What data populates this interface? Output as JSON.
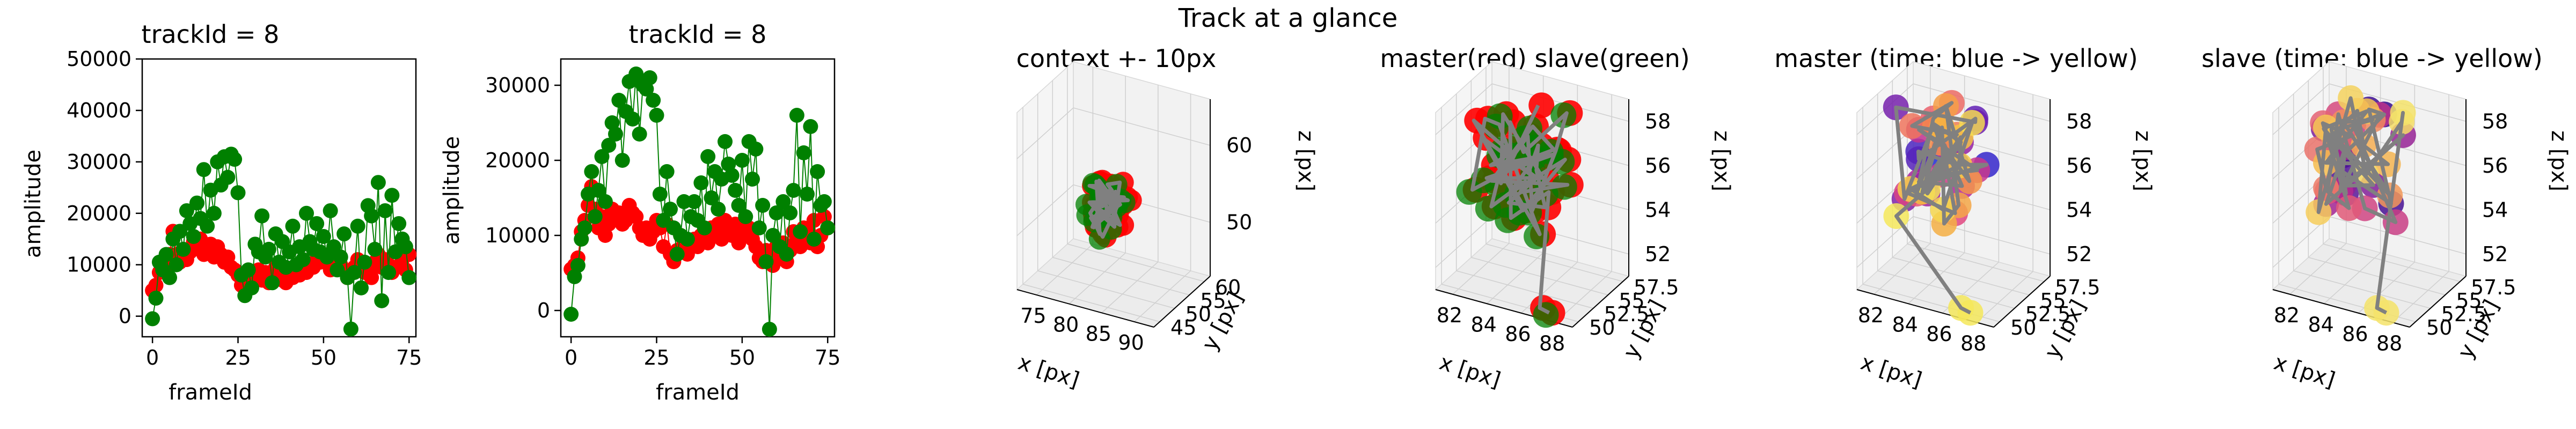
{
  "figure": {
    "suptitle": "Track at a glance"
  },
  "colors": {
    "master": "#ff0000",
    "slave": "#008000",
    "track_line": "#808080",
    "time_cmap_master": [
      "#1f2bd6",
      "#6a1fb0",
      "#b0249b",
      "#e44a7e",
      "#f48a4c",
      "#f6c040",
      "#f5e85a"
    ],
    "time_cmap_slave": [
      "#2a0a8a",
      "#6c1a9e",
      "#b3288f",
      "#e0557a",
      "#f28d5b",
      "#f6bd4f",
      "#f5e36a"
    ]
  },
  "chart_data": [
    {
      "type": "scatter",
      "title": "trackId = 8",
      "xlabel": "frameId",
      "ylabel": "amplitude",
      "xlim": [
        -3,
        77
      ],
      "ylim": [
        -4000,
        50000
      ],
      "xticks": [
        0,
        25,
        50,
        75
      ],
      "yticks": [
        0,
        10000,
        20000,
        30000,
        40000,
        50000
      ],
      "series": [
        {
          "color": "#ff0000",
          "x": [
            0,
            1,
            2,
            3,
            4,
            5,
            6,
            7,
            8,
            9,
            10,
            11,
            12,
            13,
            14,
            15,
            16,
            17,
            18,
            19,
            20,
            21,
            22,
            23,
            24,
            25,
            26,
            27,
            28,
            29,
            30,
            31,
            32,
            33,
            34,
            35,
            36,
            37,
            38,
            39,
            40,
            41,
            42,
            43,
            44,
            45,
            46,
            47,
            48,
            49,
            50,
            51,
            52,
            53,
            54,
            55,
            56,
            57,
            58,
            59,
            60,
            61,
            62,
            63,
            64,
            65,
            66,
            67,
            68,
            69,
            70,
            71,
            72,
            73,
            74,
            75
          ],
          "y": [
            5000,
            6000,
            8500,
            10000,
            9500,
            12000,
            16500,
            12000,
            10500,
            13000,
            11000,
            12500,
            14500,
            13500,
            15000,
            12000,
            13000,
            14000,
            11500,
            13500,
            12000,
            10500,
            11500,
            9500,
            9000,
            8000,
            6000,
            5500,
            7500,
            6500,
            8000,
            9000,
            7000,
            8500,
            6500,
            7500,
            9500,
            8000,
            7000,
            6500,
            8500,
            7500,
            9000,
            8000,
            9500,
            8500,
            10000,
            9500,
            11000,
            10500,
            12000,
            11500,
            9000,
            10500,
            11000,
            10000,
            9000,
            7500,
            8500,
            9500,
            11000,
            10000,
            8500,
            9000,
            7500,
            10500,
            12000,
            9500,
            11000,
            10000,
            8500,
            9500,
            12500,
            11000,
            9000,
            12000
          ]
        },
        {
          "color": "#008000",
          "x": [
            0,
            1,
            2,
            3,
            4,
            5,
            6,
            7,
            8,
            9,
            10,
            11,
            12,
            13,
            14,
            15,
            16,
            17,
            18,
            19,
            20,
            21,
            22,
            23,
            24,
            25,
            26,
            27,
            28,
            29,
            30,
            31,
            32,
            33,
            34,
            35,
            36,
            37,
            38,
            39,
            40,
            41,
            42,
            43,
            44,
            45,
            46,
            47,
            48,
            49,
            50,
            51,
            52,
            53,
            54,
            55,
            56,
            57,
            58,
            59,
            60,
            61,
            62,
            63,
            64,
            65,
            66,
            67,
            68,
            69,
            70,
            71,
            72,
            73,
            74,
            75
          ],
          "y": [
            -500,
            3500,
            10500,
            9000,
            12000,
            7500,
            15000,
            10000,
            16500,
            13000,
            20500,
            18000,
            15500,
            22000,
            19000,
            28500,
            17500,
            24500,
            20000,
            30000,
            25500,
            31000,
            27000,
            31500,
            30500,
            24000,
            8000,
            4000,
            9000,
            5500,
            14000,
            12500,
            19500,
            11500,
            13000,
            6500,
            16000,
            10500,
            14500,
            9500,
            12500,
            17500,
            10000,
            13500,
            11000,
            20000,
            14500,
            13000,
            18000,
            12500,
            15500,
            11500,
            20500,
            13500,
            9000,
            11500,
            16000,
            7500,
            -2500,
            8500,
            17500,
            5500,
            10500,
            21500,
            19500,
            13000,
            26000,
            3000,
            20500,
            8500,
            23500,
            12500,
            18000,
            15000,
            13500,
            7500
          ]
        }
      ]
    },
    {
      "type": "scatter",
      "title": "trackId = 8",
      "xlabel": "frameId",
      "ylabel": "amplitude",
      "xlim": [
        -3,
        77
      ],
      "ylim": [
        -3500,
        33500
      ],
      "xticks": [
        0,
        25,
        50,
        75
      ],
      "yticks": [
        0,
        10000,
        20000,
        30000
      ],
      "series": [
        {
          "color": "#ff0000",
          "x": [
            0,
            1,
            2,
            3,
            4,
            5,
            6,
            7,
            8,
            9,
            10,
            11,
            12,
            13,
            14,
            15,
            16,
            17,
            18,
            19,
            20,
            21,
            22,
            23,
            24,
            25,
            26,
            27,
            28,
            29,
            30,
            31,
            32,
            33,
            34,
            35,
            36,
            37,
            38,
            39,
            40,
            41,
            42,
            43,
            44,
            45,
            46,
            47,
            48,
            49,
            50,
            51,
            52,
            53,
            54,
            55,
            56,
            57,
            58,
            59,
            60,
            61,
            62,
            63,
            64,
            65,
            66,
            67,
            68,
            69,
            70,
            71,
            72,
            73,
            74,
            75
          ],
          "y": [
            5500,
            6000,
            7000,
            10500,
            12000,
            14000,
            16500,
            13500,
            11000,
            12500,
            10000,
            11500,
            13500,
            12500,
            13000,
            11500,
            12000,
            14000,
            13000,
            12500,
            11000,
            10000,
            11000,
            9500,
            10500,
            12000,
            11000,
            8500,
            11500,
            7500,
            6500,
            8000,
            10000,
            9000,
            7500,
            8500,
            9500,
            8500,
            10000,
            9500,
            9000,
            11000,
            10500,
            11500,
            9500,
            12000,
            11000,
            10000,
            11500,
            9000,
            11000,
            10500,
            11000,
            9500,
            8500,
            7000,
            6500,
            8000,
            7500,
            6000,
            8500,
            7500,
            9000,
            6500,
            8000,
            10500,
            9500,
            8500,
            11000,
            10500,
            9000,
            12000,
            8500,
            10000,
            12500,
            11000
          ]
        },
        {
          "color": "#008000",
          "x": [
            0,
            1,
            2,
            3,
            4,
            5,
            6,
            7,
            8,
            9,
            10,
            11,
            12,
            13,
            14,
            15,
            16,
            17,
            18,
            19,
            20,
            21,
            22,
            23,
            24,
            25,
            26,
            27,
            28,
            29,
            30,
            31,
            32,
            33,
            34,
            35,
            36,
            37,
            38,
            39,
            40,
            41,
            42,
            43,
            44,
            45,
            46,
            47,
            48,
            49,
            50,
            51,
            52,
            53,
            54,
            55,
            56,
            57,
            58,
            59,
            60,
            61,
            62,
            63,
            64,
            65,
            66,
            67,
            68,
            69,
            70,
            71,
            72,
            73,
            74,
            75
          ],
          "y": [
            -500,
            4500,
            6000,
            9500,
            11000,
            15500,
            18500,
            12500,
            16000,
            20500,
            14500,
            22000,
            25000,
            23500,
            28000,
            20000,
            26500,
            30500,
            25500,
            31500,
            23500,
            30000,
            29500,
            31000,
            28000,
            26000,
            15500,
            12000,
            18500,
            13500,
            11000,
            7500,
            10000,
            14500,
            9500,
            12500,
            14500,
            12000,
            17000,
            11000,
            20500,
            15000,
            18500,
            13500,
            17500,
            22500,
            19500,
            18000,
            16000,
            14000,
            20000,
            12500,
            22500,
            17500,
            21500,
            11000,
            14000,
            6500,
            -2500,
            10000,
            13000,
            8500,
            14500,
            7500,
            13000,
            16000,
            26000,
            10500,
            21000,
            15500,
            24500,
            9500,
            18500,
            14000,
            14500,
            11000
          ]
        }
      ]
    },
    {
      "type": "scatter3d",
      "title": "context +- 10px",
      "xlabel": "x [px]",
      "ylabel": "y [px]",
      "zlabel": "z [px]",
      "xticks": [
        75,
        80,
        85,
        90
      ],
      "yticks": [
        45,
        50,
        55,
        60
      ],
      "zticks": [
        50,
        60
      ],
      "xlim": [
        72,
        93
      ],
      "ylim": [
        43,
        62
      ],
      "zlim": [
        43,
        66
      ],
      "style": "master-slave"
    },
    {
      "type": "scatter3d",
      "title": "master(red) slave(green)",
      "xlabel": "x [px]",
      "ylabel": "y [px]",
      "zlabel": "z [px]",
      "xticks": [
        82,
        84,
        86,
        88
      ],
      "yticks": [
        50.0,
        52.5,
        55.0,
        57.5
      ],
      "zticks": [
        52,
        54,
        56,
        58
      ],
      "xlim": [
        81,
        89
      ],
      "ylim": [
        49,
        58.5
      ],
      "zlim": [
        51,
        59
      ],
      "style": "master-slave"
    },
    {
      "type": "scatter3d",
      "title": "master (time: blue -> yellow)",
      "xlabel": "x [px]",
      "ylabel": "y [px]",
      "zlabel": "z [px]",
      "xticks": [
        82,
        84,
        86,
        88
      ],
      "yticks": [
        50.0,
        52.5,
        55.0,
        57.5
      ],
      "zticks": [
        52,
        54,
        56,
        58
      ],
      "xlim": [
        81,
        89
      ],
      "ylim": [
        49,
        58.5
      ],
      "zlim": [
        51,
        59
      ],
      "style": "time-master"
    },
    {
      "type": "scatter3d",
      "title": "slave (time: blue -> yellow)",
      "xlabel": "x [px]",
      "ylabel": "y [px]",
      "zlabel": "z [px]",
      "xticks": [
        82,
        84,
        86,
        88
      ],
      "yticks": [
        50.0,
        52.5,
        55.0,
        57.5
      ],
      "zticks": [
        52,
        54,
        56,
        58
      ],
      "xlim": [
        81,
        89
      ],
      "ylim": [
        49,
        58.5
      ],
      "zlim": [
        51,
        59
      ],
      "style": "time-slave"
    }
  ]
}
